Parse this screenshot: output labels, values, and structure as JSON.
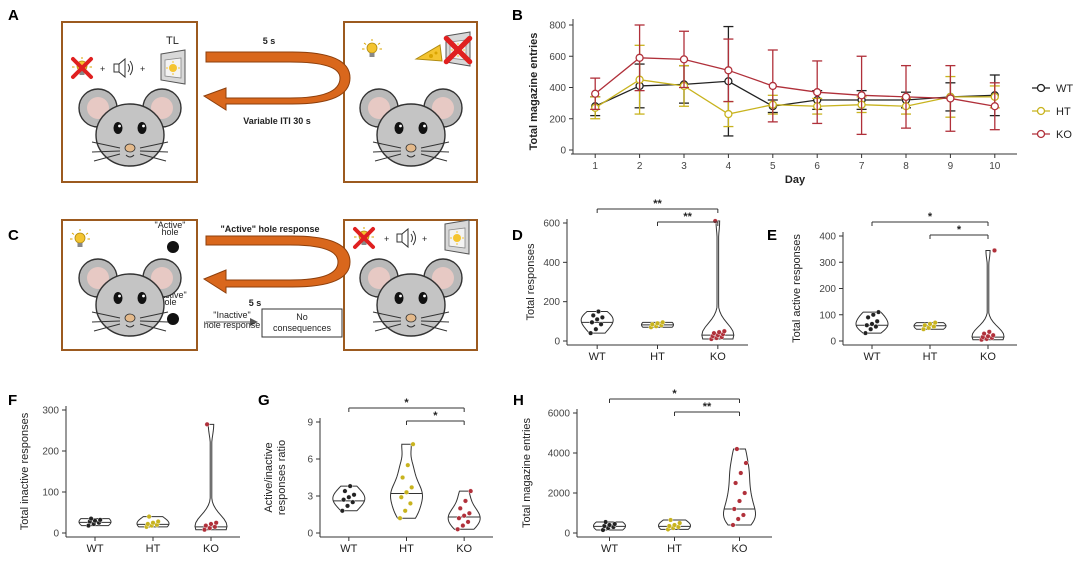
{
  "panels": {
    "A": {
      "letter": "A",
      "tl": "TL",
      "arrow_top": "5 s",
      "arrow_bottom": "Variable ITI 30 s"
    },
    "C": {
      "letter": "C",
      "active_hole": "\"Active\"\nhole",
      "inactive_hole": "\"Inactive\"\nhole",
      "active_response": "\"Active\" hole response",
      "delay": "5 s",
      "inactive_response": "\"Inactive\"\nhole response",
      "no_consequences": "No\nconsequences"
    }
  },
  "colors": {
    "WT": "#222222",
    "HT": "#c8b31e",
    "KO": "#b0303a",
    "arrow": "#d9671c",
    "box": "#9c5a1f"
  },
  "groups": [
    "WT",
    "HT",
    "KO"
  ],
  "chart_data": [
    {
      "id": "B",
      "letter": "B",
      "type": "line",
      "title": "",
      "xlabel": "Day",
      "ylabel": "Total magazine entries",
      "x": [
        1,
        2,
        3,
        4,
        5,
        6,
        7,
        8,
        9,
        10
      ],
      "ylim": [
        0,
        800
      ],
      "yticks": [
        0,
        200,
        400,
        600,
        800
      ],
      "legend": [
        "WT",
        "HT",
        "KO"
      ],
      "series": [
        {
          "name": "WT",
          "values": [
            280,
            410,
            420,
            440,
            280,
            320,
            320,
            320,
            340,
            350
          ],
          "err": [
            60,
            140,
            120,
            350,
            40,
            60,
            60,
            50,
            90,
            130
          ]
        },
        {
          "name": "HT",
          "values": [
            270,
            450,
            410,
            230,
            290,
            280,
            290,
            280,
            340,
            340
          ],
          "err": [
            70,
            220,
            130,
            80,
            60,
            50,
            50,
            50,
            130,
            70
          ]
        },
        {
          "name": "KO",
          "values": [
            360,
            590,
            580,
            510,
            410,
            370,
            350,
            340,
            330,
            280
          ],
          "err": [
            100,
            210,
            180,
            200,
            230,
            200,
            250,
            200,
            210,
            150
          ]
        }
      ]
    },
    {
      "id": "D",
      "letter": "D",
      "type": "violin",
      "ylabel": "Total responses",
      "ylim": [
        0,
        600
      ],
      "yticks": [
        0,
        200,
        400,
        600
      ],
      "categories": [
        "WT",
        "HT",
        "KO"
      ],
      "points": [
        [
          40,
          60,
          85,
          95,
          110,
          120,
          130,
          150
        ],
        [
          70,
          75,
          80,
          85,
          90,
          95
        ],
        [
          10,
          15,
          20,
          25,
          30,
          35,
          40,
          45,
          50,
          610
        ]
      ],
      "median": [
        95,
        82,
        30
      ],
      "sig": [
        {
          "from": "WT",
          "to": "KO",
          "label": "**"
        },
        {
          "from": "HT",
          "to": "KO",
          "label": "**"
        }
      ]
    },
    {
      "id": "E",
      "letter": "E",
      "type": "violin",
      "ylabel": "Total active responses",
      "ylim": [
        0,
        400
      ],
      "yticks": [
        0,
        100,
        200,
        300,
        400
      ],
      "categories": [
        "WT",
        "HT",
        "KO"
      ],
      "points": [
        [
          30,
          45,
          55,
          60,
          65,
          75,
          90,
          100,
          110
        ],
        [
          45,
          50,
          55,
          60,
          65,
          70
        ],
        [
          5,
          8,
          12,
          15,
          18,
          22,
          28,
          35,
          345
        ]
      ],
      "median": [
        60,
        58,
        15
      ],
      "sig": [
        {
          "from": "WT",
          "to": "KO",
          "label": "*"
        },
        {
          "from": "HT",
          "to": "KO",
          "label": "*"
        }
      ]
    },
    {
      "id": "F",
      "letter": "F",
      "type": "violin",
      "ylabel": "Total inactive responses",
      "ylim": [
        0,
        300
      ],
      "yticks": [
        0,
        100,
        200,
        300
      ],
      "categories": [
        "WT",
        "HT",
        "KO"
      ],
      "points": [
        [
          18,
          22,
          25,
          28,
          30,
          32,
          35
        ],
        [
          15,
          18,
          20,
          22,
          25,
          28,
          40
        ],
        [
          8,
          12,
          15,
          18,
          22,
          25,
          265
        ]
      ],
      "median": [
        26,
        21,
        15
      ],
      "sig": []
    },
    {
      "id": "G",
      "letter": "G",
      "type": "violin",
      "ylabel": "Active/inactive\nresponses ratio",
      "ylim": [
        0,
        9
      ],
      "yticks": [
        0,
        3,
        6,
        9
      ],
      "categories": [
        "WT",
        "HT",
        "KO"
      ],
      "points": [
        [
          1.8,
          2.2,
          2.5,
          2.7,
          2.9,
          3.1,
          3.4,
          3.8
        ],
        [
          1.2,
          1.8,
          2.4,
          2.9,
          3.3,
          3.7,
          4.5,
          5.5,
          7.2
        ],
        [
          0.3,
          0.6,
          0.9,
          1.2,
          1.4,
          1.6,
          2.0,
          2.6,
          3.4
        ]
      ],
      "median": [
        2.6,
        3.2,
        1.3
      ],
      "sig": [
        {
          "from": "WT",
          "to": "KO",
          "label": "*"
        },
        {
          "from": "HT",
          "to": "KO",
          "label": "*"
        }
      ]
    },
    {
      "id": "H",
      "letter": "H",
      "type": "violin",
      "ylabel": "Total magazine entries",
      "ylim": [
        0,
        6000
      ],
      "yticks": [
        0,
        2000,
        4000,
        6000
      ],
      "categories": [
        "WT",
        "HT",
        "KO"
      ],
      "points": [
        [
          150,
          250,
          300,
          350,
          400,
          450,
          550
        ],
        [
          180,
          250,
          300,
          350,
          400,
          500,
          650
        ],
        [
          400,
          700,
          900,
          1200,
          1600,
          2000,
          2500,
          3000,
          3500,
          4200
        ]
      ],
      "median": [
        330,
        330,
        1200
      ],
      "sig": [
        {
          "from": "WT",
          "to": "KO",
          "label": "*"
        },
        {
          "from": "HT",
          "to": "KO",
          "label": "**"
        }
      ]
    }
  ]
}
